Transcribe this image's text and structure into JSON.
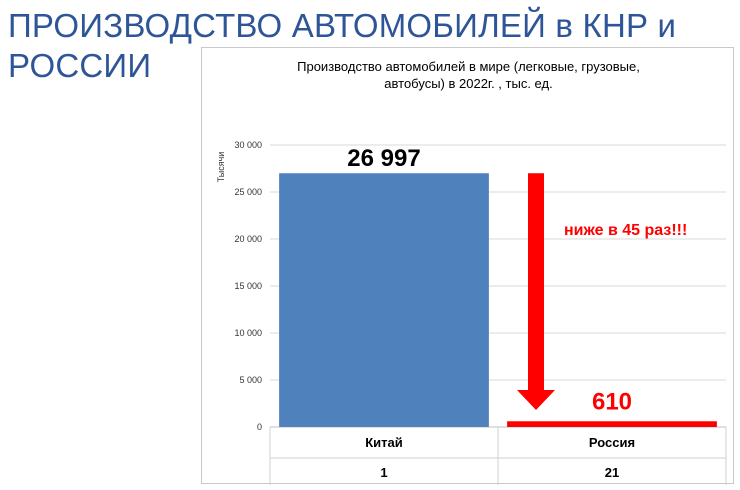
{
  "slide": {
    "title_line1": "ПРОИЗВОДСТВО АВТОМОБИЛЕЙ в КНР и",
    "title_line2": "РОССИИ"
  },
  "chart_data": {
    "type": "bar",
    "title_line1": "Производство автомобилей в мире (легковые, грузовые,",
    "title_line2": "автобусы) в 2022г. , тыс. ед.",
    "ylabel": "Тысячи",
    "ylim": [
      0,
      30000
    ],
    "yticks": [
      0,
      5000,
      10000,
      15000,
      20000,
      25000,
      30000
    ],
    "ytick_labels": [
      "0",
      "5 000",
      "10 000",
      "15 000",
      "20 000",
      "25 000",
      "30 000"
    ],
    "grid": true,
    "categories": [
      "Китай",
      "Россия"
    ],
    "ranks": [
      "1",
      "21"
    ],
    "values": [
      26997,
      610
    ],
    "value_labels": [
      "26 997",
      "610"
    ],
    "bar_colors": [
      "#4f81bd",
      "#ff0000"
    ],
    "annotation": "ниже в  45 раз!!!",
    "annotation_color": "#ff0000"
  }
}
